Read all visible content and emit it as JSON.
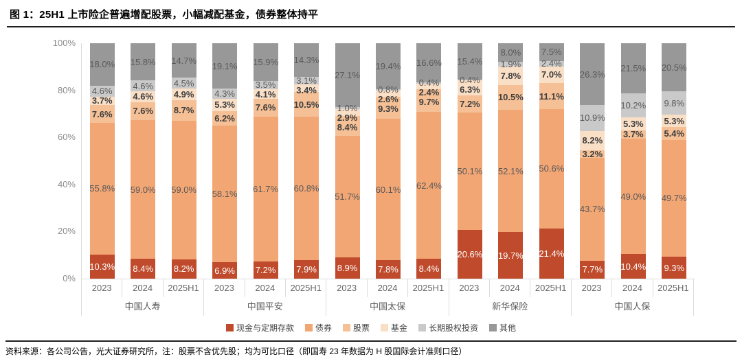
{
  "figure": {
    "title": "图 1：25H1 上市险企普遍增配股票，小幅减配基金，债券整体持平",
    "source_note": "资料来源：各公司公告，光大证券研究所，注：股票不含优先股；均为可比口径（即国寿 23 年数据为 H 股国际会计准则口径）"
  },
  "chart_data": {
    "type": "bar",
    "variant": "stacked-100-percent",
    "title": "25H1 上市险企普遍增配股票，小幅减配基金，债券整体持平",
    "legend_position": "bottom",
    "grid": false,
    "y_axis": {
      "min": 0,
      "max": 100,
      "tick_values": [
        0,
        20,
        40,
        60,
        80,
        100
      ],
      "tick_labels": [
        "0%",
        "20%",
        "40%",
        "60%",
        "80%",
        "100%"
      ]
    },
    "groups": [
      "中国人寿",
      "中国平安",
      "中国太保",
      "新华保险",
      "中国人保"
    ],
    "x_within_group": [
      "2023",
      "2024",
      "2025H1"
    ],
    "value_suffix": "%",
    "series": [
      {
        "id": "cash-deposits",
        "name": "现金与定期存款",
        "color": "#BF4B2C",
        "label_color": "#ffffff",
        "label_weight": "400",
        "values": [
          10.3,
          8.4,
          8.2,
          6.9,
          7.2,
          7.9,
          8.9,
          7.8,
          8.4,
          20.6,
          19.7,
          21.4,
          7.7,
          10.4,
          9.3
        ]
      },
      {
        "id": "bonds",
        "name": "债券",
        "color": "#F2A674",
        "label_color": "#595959",
        "label_weight": "400",
        "values": [
          55.8,
          59.0,
          59.0,
          58.1,
          61.7,
          60.8,
          51.7,
          60.1,
          62.4,
          50.1,
          52.1,
          50.6,
          43.7,
          49.0,
          49.7
        ]
      },
      {
        "id": "stocks",
        "name": "股票",
        "color": "#F5C096",
        "label_color": "#3d3d3d",
        "label_weight": "700",
        "values": [
          7.6,
          7.6,
          8.7,
          6.2,
          7.6,
          10.5,
          8.4,
          9.3,
          9.7,
          7.2,
          10.5,
          11.1,
          3.2,
          3.7,
          5.4
        ]
      },
      {
        "id": "funds",
        "name": "基金",
        "color": "#FADFC7",
        "label_color": "#3d3d3d",
        "label_weight": "700",
        "values": [
          3.7,
          4.6,
          4.9,
          5.3,
          4.1,
          3.4,
          2.9,
          2.6,
          2.4,
          6.3,
          7.8,
          7.0,
          8.2,
          5.3,
          5.3
        ]
      },
      {
        "id": "lt-equity",
        "name": "长期股权投资",
        "color": "#C9C9C9",
        "label_color": "#595959",
        "label_weight": "400",
        "values": [
          4.6,
          4.6,
          4.5,
          4.3,
          3.5,
          3.1,
          1.0,
          0.8,
          0.4,
          0.4,
          1.9,
          2.4,
          10.9,
          10.2,
          9.8
        ]
      },
      {
        "id": "other",
        "name": "其他",
        "color": "#989898",
        "label_color": "#595959",
        "label_weight": "400",
        "values": [
          18.0,
          15.8,
          14.7,
          19.1,
          15.9,
          14.3,
          27.1,
          19.4,
          16.6,
          15.4,
          8.0,
          7.5,
          26.3,
          21.5,
          20.5
        ]
      }
    ]
  }
}
